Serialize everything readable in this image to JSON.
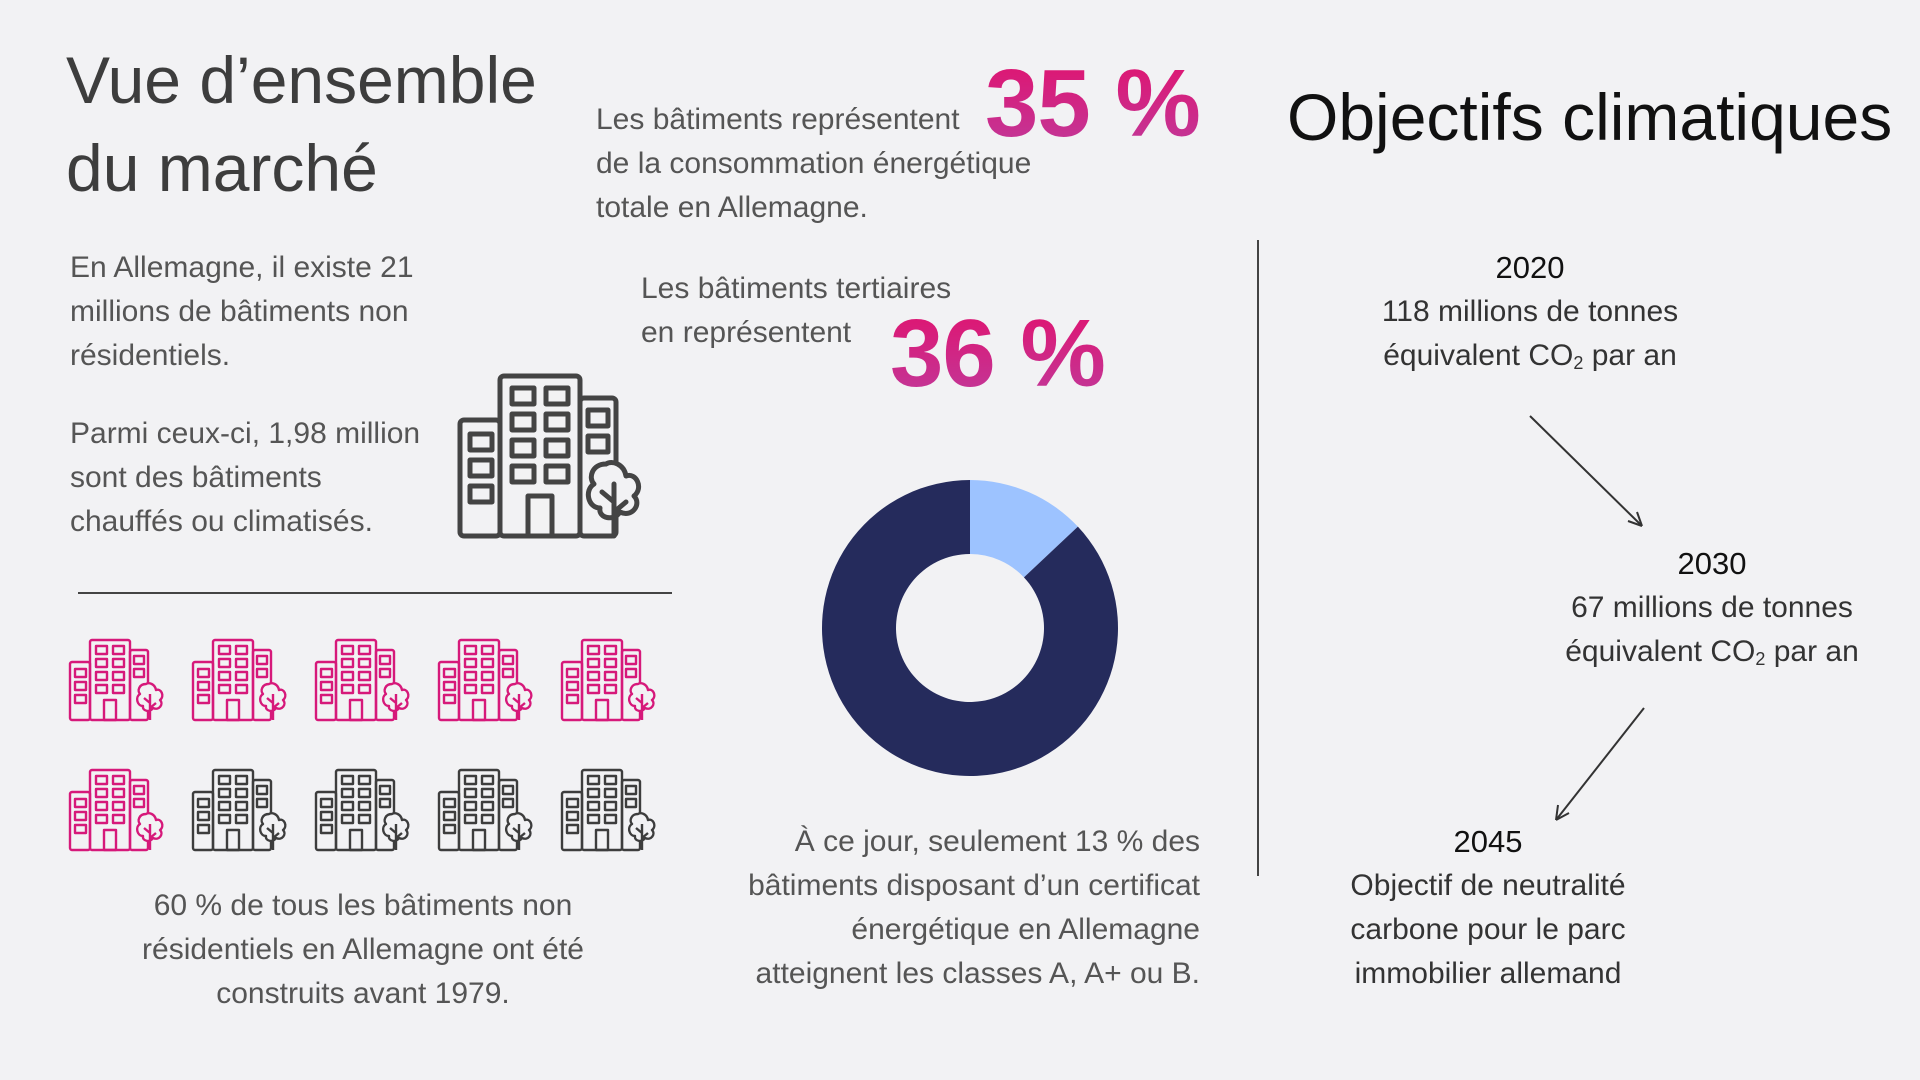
{
  "overview": {
    "title_line1": "Vue d’ensemble",
    "title_line2": "du marché",
    "existence_line1": "En Allemagne, il existe 21",
    "existence_line2": "millions de bâtiments non",
    "existence_line3": "résidentiels.",
    "heated_line1": "Parmi ceux-ci, 1,98 million",
    "heated_line2": "sont des bâtiments",
    "heated_line3": "chauffés ou climatisés.",
    "before1979_line1": "60 % de tous les bâtiments non",
    "before1979_line2": "résidentiels en Allemagne ont été",
    "before1979_line3": "construits avant 1979.",
    "building_icons": {
      "total": 10,
      "highlighted": 6,
      "highlight_color": "#d6197a",
      "base_color": "#3d3d3d"
    }
  },
  "energy": {
    "pct_total": "35 %",
    "total_line1": "Les bâtiments représentent",
    "total_line2": "de la consommation énergétique",
    "total_line3": "totale en Allemagne.",
    "tertiary_line1": "Les bâtiments tertiaires",
    "tertiary_line2": "en représentent",
    "pct_tertiary": "36 %",
    "certificate_line1": "À ce jour, seulement 13 % des",
    "certificate_line2": "bâtiments disposant d’un certificat",
    "certificate_line3": "énergétique en Allemagne",
    "certificate_line4": "atteignent les classes A, A+ ou B."
  },
  "chart_data": {
    "type": "pie",
    "variant": "donut",
    "values": [
      13,
      87
    ],
    "colors": [
      "#9dc3ff",
      "#252b5c"
    ]
  },
  "climate": {
    "title": "Objectifs climatiques",
    "milestones": [
      {
        "year": "2020",
        "line1": "118 millions de tonnes",
        "line2_pre": "équivalent CO",
        "line2_sub": "2",
        "line2_post": " par an"
      },
      {
        "year": "2030",
        "line1": "67 millions de tonnes",
        "line2_pre": "équivalent CO",
        "line2_sub": "2",
        "line2_post": " par an"
      },
      {
        "year": "2045",
        "line1": "Objectif de neutralité",
        "line2": "carbone pour le parc",
        "line3": "immobilier allemand"
      }
    ]
  }
}
